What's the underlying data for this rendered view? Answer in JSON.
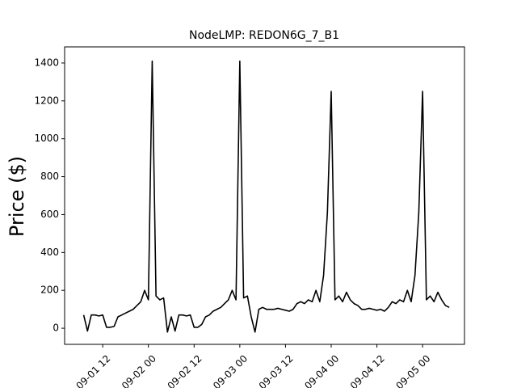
{
  "chart_data": {
    "type": "line",
    "title": "NodeLMP: REDON6G_7_B1",
    "y_label": "Price ($)",
    "color": "#000000",
    "x": [
      "09-01 07",
      "09-01 08",
      "09-01 09",
      "09-01 10",
      "09-01 11",
      "09-01 12",
      "09-01 13",
      "09-01 14",
      "09-01 15",
      "09-01 16",
      "09-01 17",
      "09-01 18",
      "09-01 19",
      "09-01 20",
      "09-01 21",
      "09-01 22",
      "09-01 23",
      "09-02 00",
      "09-02 01",
      "09-02 02",
      "09-02 03",
      "09-02 04",
      "09-02 05",
      "09-02 06",
      "09-02 07",
      "09-02 08",
      "09-02 09",
      "09-02 10",
      "09-02 11",
      "09-02 12",
      "09-02 13",
      "09-02 14",
      "09-02 15",
      "09-02 16",
      "09-02 17",
      "09-02 18",
      "09-02 19",
      "09-02 20",
      "09-02 21",
      "09-02 22",
      "09-02 23",
      "09-03 00",
      "09-03 01",
      "09-03 02",
      "09-03 03",
      "09-03 04",
      "09-03 05",
      "09-03 06",
      "09-03 07",
      "09-03 08",
      "09-03 09",
      "09-03 10",
      "09-03 11",
      "09-03 12",
      "09-03 13",
      "09-03 14",
      "09-03 15",
      "09-03 16",
      "09-03 17",
      "09-03 18",
      "09-03 19",
      "09-03 20",
      "09-03 21",
      "09-03 22",
      "09-03 23",
      "09-04 00",
      "09-04 01",
      "09-04 02",
      "09-04 03",
      "09-04 04",
      "09-04 05",
      "09-04 06",
      "09-04 07",
      "09-04 08",
      "09-04 09",
      "09-04 10",
      "09-04 11",
      "09-04 12",
      "09-04 13",
      "09-04 14",
      "09-04 15",
      "09-04 16",
      "09-04 17",
      "09-04 18",
      "09-04 19",
      "09-04 20",
      "09-04 21",
      "09-04 22",
      "09-04 23",
      "09-05 00",
      "09-05 01",
      "09-05 02",
      "09-05 03",
      "09-05 04",
      "09-05 05",
      "09-05 06",
      "09-05 07"
    ],
    "values": [
      70,
      -15,
      70,
      70,
      65,
      70,
      5,
      5,
      10,
      60,
      70,
      80,
      90,
      100,
      120,
      140,
      200,
      150,
      1410,
      170,
      150,
      160,
      -20,
      60,
      -15,
      70,
      70,
      65,
      70,
      5,
      5,
      20,
      60,
      70,
      90,
      100,
      110,
      130,
      150,
      200,
      150,
      1410,
      160,
      170,
      60,
      -20,
      100,
      110,
      100,
      100,
      100,
      105,
      100,
      95,
      90,
      100,
      130,
      140,
      130,
      150,
      140,
      200,
      140,
      280,
      610,
      1250,
      150,
      170,
      140,
      190,
      150,
      130,
      120,
      100,
      100,
      105,
      100,
      95,
      100,
      90,
      110,
      140,
      130,
      150,
      140,
      200,
      140,
      280,
      610,
      1250,
      150,
      170,
      140,
      190,
      150,
      120,
      110
    ],
    "xlim": [
      "09-01 02",
      "09-05 11"
    ],
    "xticks": [
      "09-01 12",
      "09-02 00",
      "09-02 12",
      "09-03 00",
      "09-03 12",
      "09-04 00",
      "09-04 12",
      "09-05 00"
    ],
    "ylim": [
      -85,
      1485
    ],
    "yticks": [
      0,
      200,
      400,
      600,
      800,
      1000,
      1200,
      1400
    ]
  }
}
